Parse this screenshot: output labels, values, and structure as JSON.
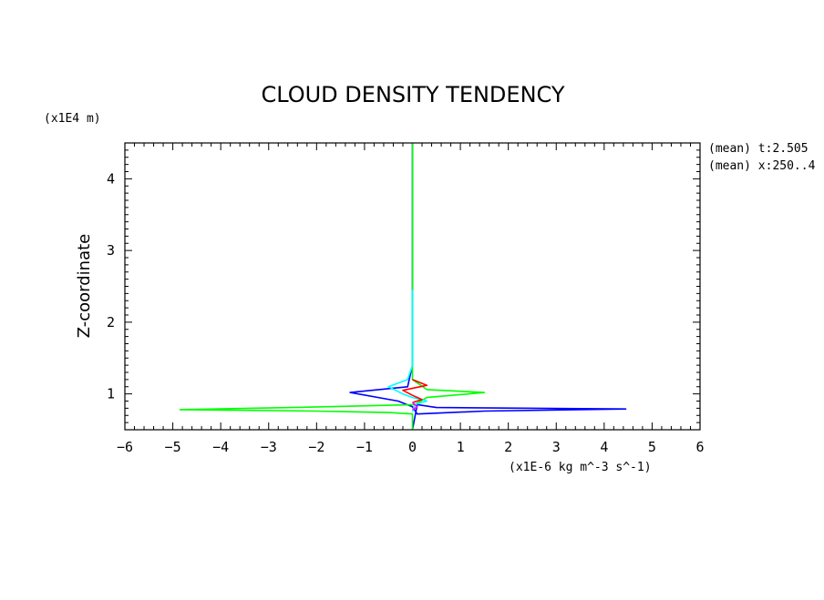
{
  "chart_data": {
    "type": "line",
    "title": "CLOUD DENSITY TENDENCY",
    "ylabel": "Z-coordinate",
    "yunit": "(x1E4 m)",
    "xunit": "(x1E-6 kg m^-3 s^-1)",
    "xlim": [
      -6,
      6
    ],
    "ylim": [
      0.5,
      4.5
    ],
    "xticks": [
      "-6",
      "-5",
      "-4",
      "-3",
      "-2",
      "-1",
      "0",
      "1",
      "2",
      "3",
      "4",
      "5",
      "6"
    ],
    "yticks": [
      "1",
      "2",
      "3",
      "4"
    ],
    "annotations": [
      "(mean) t:2.505",
      "(mean) x:250..4"
    ],
    "series": [
      {
        "color": "#0000ff",
        "points": [
          [
            0,
            4.5
          ],
          [
            0,
            1.4
          ],
          [
            -0.1,
            1.1
          ],
          [
            -1.3,
            1.02
          ],
          [
            -0.3,
            0.9
          ],
          [
            0,
            0.82
          ],
          [
            0.1,
            0.72
          ],
          [
            1.5,
            0.76
          ],
          [
            4.45,
            0.79
          ],
          [
            0.5,
            0.81
          ],
          [
            0.1,
            0.85
          ],
          [
            0,
            0.5
          ]
        ]
      },
      {
        "color": "#00ff00",
        "points": [
          [
            0,
            4.5
          ],
          [
            0,
            1.2
          ],
          [
            0.3,
            1.06
          ],
          [
            1.5,
            1.02
          ],
          [
            0.3,
            0.95
          ],
          [
            0.05,
            0.85
          ],
          [
            -2.5,
            0.81
          ],
          [
            -4.85,
            0.78
          ],
          [
            -2,
            0.76
          ],
          [
            -0.5,
            0.74
          ],
          [
            0,
            0.72
          ],
          [
            0,
            0.5
          ]
        ]
      },
      {
        "color": "#00ffff",
        "points": [
          [
            0,
            2.45
          ],
          [
            0,
            1.4
          ],
          [
            -0.1,
            1.2
          ],
          [
            -0.5,
            1.1
          ],
          [
            -0.2,
            1.0
          ],
          [
            0,
            0.95
          ],
          [
            0.3,
            0.9
          ],
          [
            0.05,
            0.85
          ],
          [
            0,
            0.75
          ]
        ]
      },
      {
        "color": "#ff0000",
        "points": [
          [
            0,
            1.2
          ],
          [
            0.3,
            1.12
          ],
          [
            -0.2,
            1.05
          ],
          [
            0,
            0.98
          ],
          [
            0.2,
            0.92
          ],
          [
            0,
            0.88
          ]
        ]
      },
      {
        "color": "#ff00ff",
        "points": [
          [
            0,
            0.88
          ],
          [
            0.1,
            0.82
          ],
          [
            0,
            0.78
          ]
        ]
      }
    ]
  }
}
